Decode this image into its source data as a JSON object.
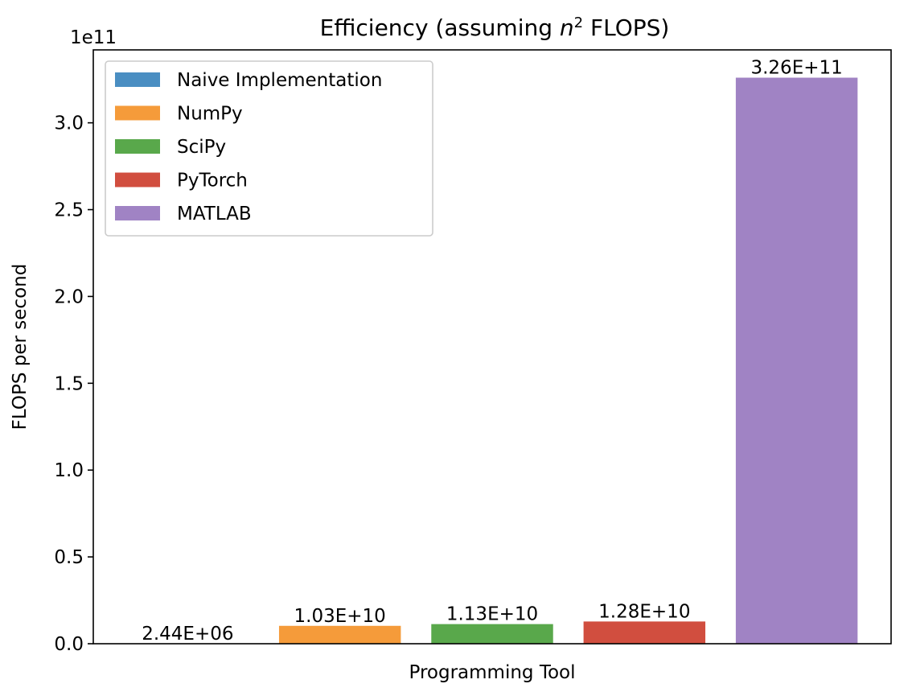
{
  "chart_data": {
    "type": "bar",
    "title": "Efficiency (assuming ",
    "title_var": "n",
    "title_sup": "2",
    "title_tail": " FLOPS)",
    "xlabel": "Programming Tool",
    "ylabel": "FLOPS per second",
    "y_offset_label": "1e11",
    "ylim": [
      0,
      3.42
    ],
    "yticks": [
      0.0,
      0.5,
      1.0,
      1.5,
      2.0,
      2.5,
      3.0
    ],
    "ytick_labels": [
      "0.0",
      "0.5",
      "1.0",
      "1.5",
      "2.0",
      "2.5",
      "3.0"
    ],
    "unit_scale": 100000000000,
    "grid": false,
    "legend_position": "upper-left",
    "series": [
      {
        "name": "Naive Implementation",
        "value": 2440000,
        "label": "2.44E+06",
        "color": "#4a8ec2"
      },
      {
        "name": "NumPy",
        "value": 10300000000,
        "label": "1.03E+10",
        "color": "#f59b3a"
      },
      {
        "name": "SciPy",
        "value": 11300000000,
        "label": "1.13E+10",
        "color": "#59a84b"
      },
      {
        "name": "PyTorch",
        "value": 12800000000,
        "label": "1.28E+10",
        "color": "#d14e3f"
      },
      {
        "name": "MATLAB",
        "value": 326000000000,
        "label": "3.26E+11",
        "color": "#a083c4"
      }
    ]
  }
}
